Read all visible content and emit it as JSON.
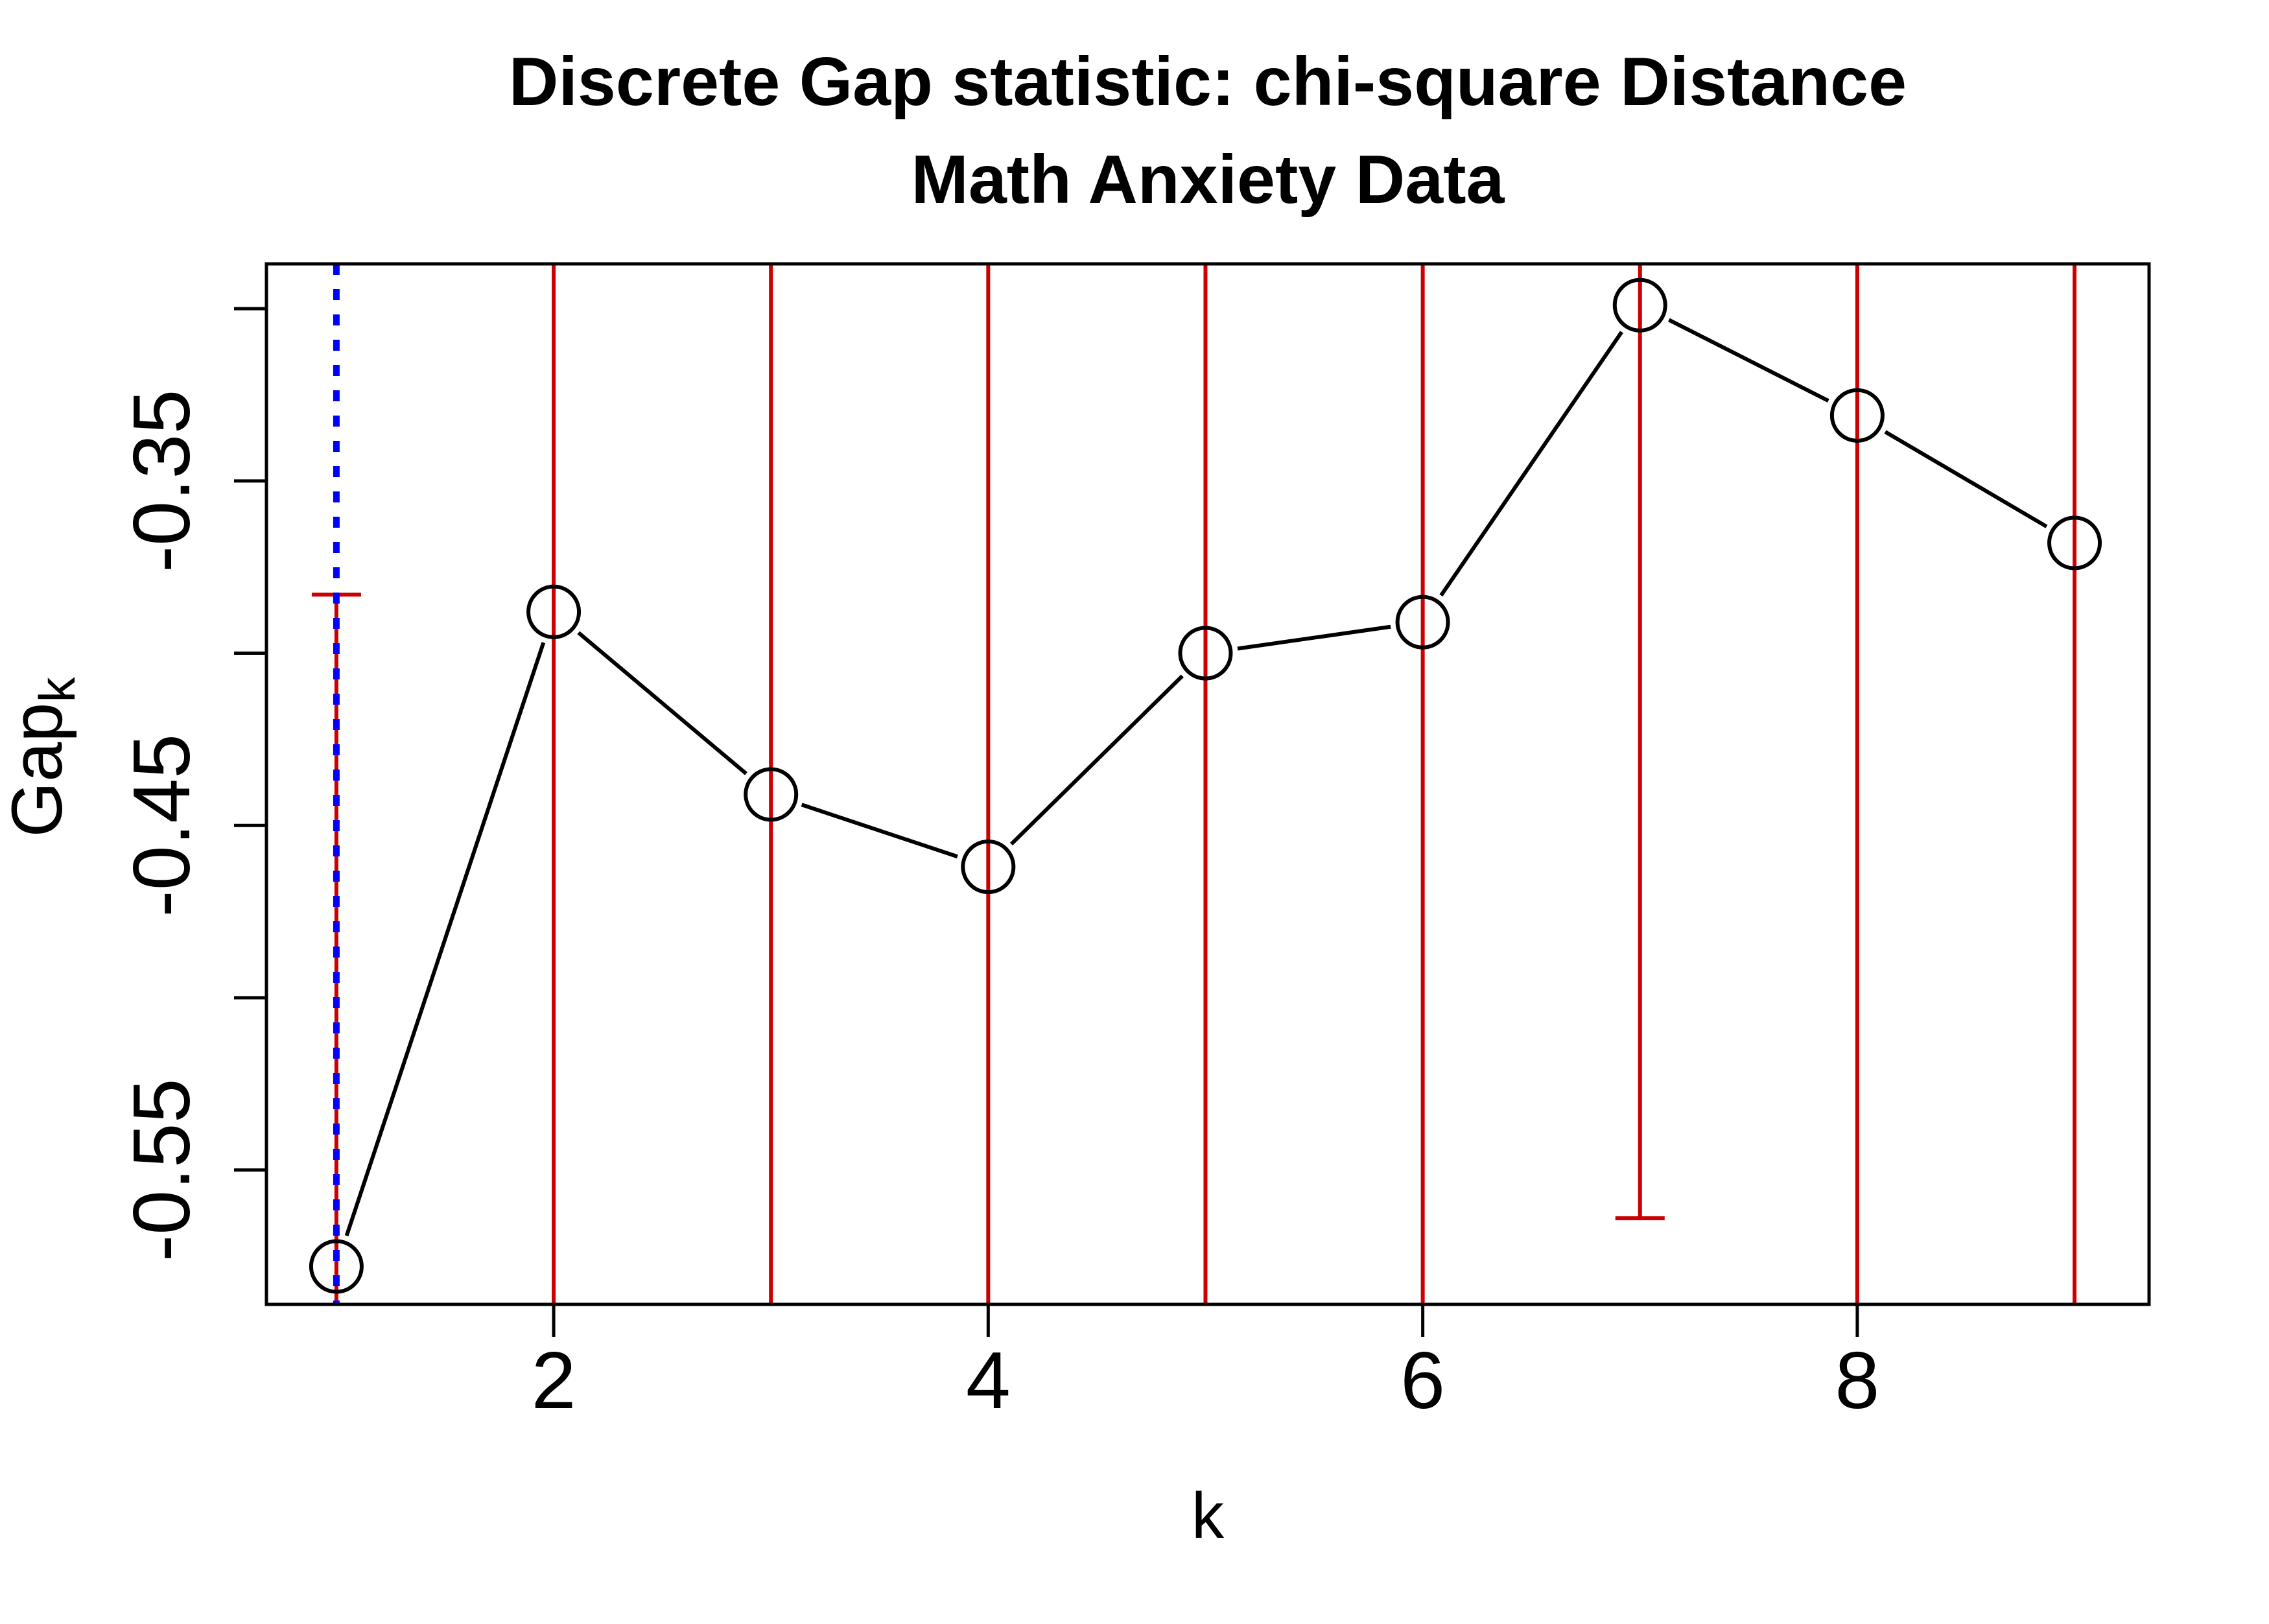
{
  "title": {
    "line1": "Discrete Gap statistic: chi-square Distance",
    "line2": "Math Anxiety Data"
  },
  "axes": {
    "x_label": "k",
    "y_label_base": "Gap",
    "y_label_sub": "k"
  },
  "colors": {
    "error_bar": "#cc0000",
    "optimal_line": "#0000ff",
    "series": "#000000",
    "background": "#ffffff"
  },
  "chart_data": {
    "type": "line",
    "title": "Discrete Gap statistic: chi-square Distance",
    "subtitle": "Math Anxiety Data",
    "xlabel": "k",
    "ylabel": "Gap_k",
    "series_name": "Gap statistic",
    "x": [
      1,
      2,
      3,
      4,
      5,
      6,
      7,
      8,
      9
    ],
    "values": [
      -0.578,
      -0.388,
      -0.441,
      -0.462,
      -0.4,
      -0.391,
      -0.299,
      -0.331,
      -0.368
    ],
    "error_bars": {
      "upper_caps": [
        {
          "k": 1,
          "value": -0.383
        }
      ],
      "lower_caps": [
        {
          "k": 7,
          "value": -0.564
        }
      ]
    },
    "optimal_k_line": 1,
    "x_ticks": [
      {
        "value": 2,
        "label": "2"
      },
      {
        "value": 4,
        "label": "4"
      },
      {
        "value": 6,
        "label": "6"
      },
      {
        "value": 8,
        "label": "8"
      }
    ],
    "y_ticks": [
      -0.3,
      -0.35,
      -0.4,
      -0.45,
      -0.5,
      -0.55
    ],
    "y_tick_labels": [
      {
        "value": -0.35,
        "label": "-0.35"
      },
      {
        "value": -0.45,
        "label": "-0.45"
      },
      {
        "value": -0.55,
        "label": "-0.55"
      }
    ],
    "xlim": [
      0.678,
      9.343
    ],
    "ylim": [
      -0.589,
      -0.287
    ],
    "grid": false,
    "legend": false
  }
}
